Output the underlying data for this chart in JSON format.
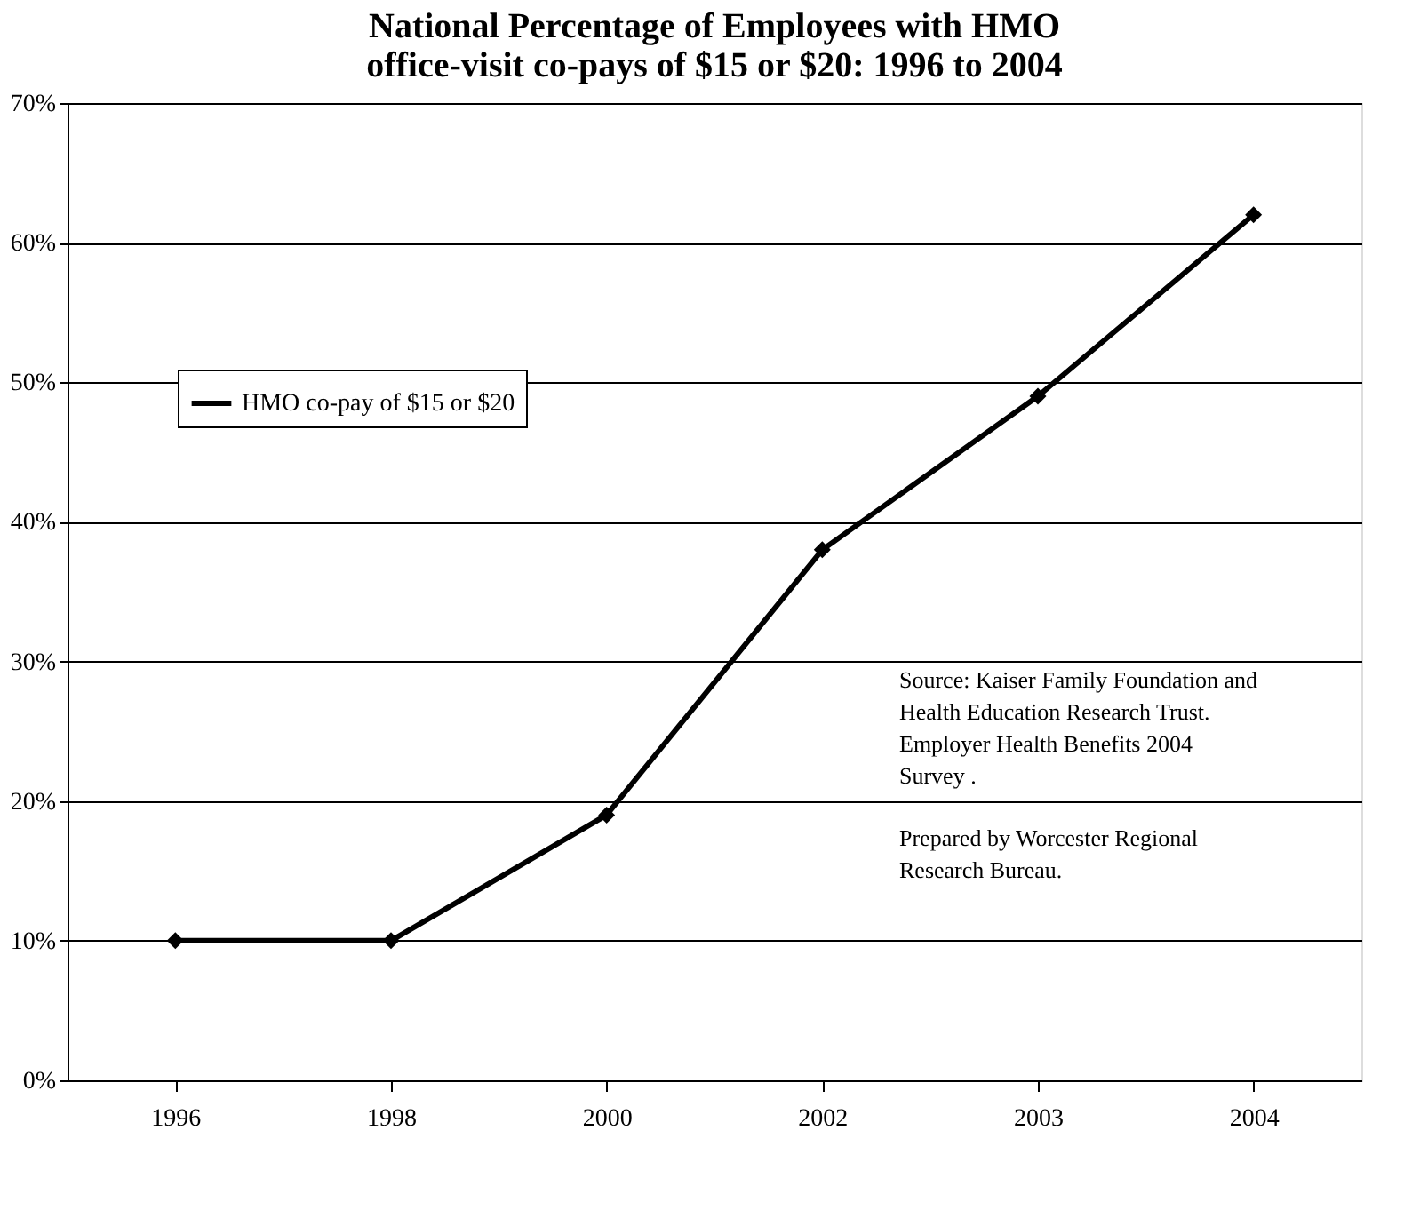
{
  "chart_data": {
    "type": "line",
    "title": "National Percentage of Employees with HMO\noffice-visit co-pays of $15 or $20: 1996 to 2004",
    "categories": [
      "1996",
      "1998",
      "2000",
      "2002",
      "2003",
      "2004"
    ],
    "series": [
      {
        "name": "HMO co-pay of $15 or $20",
        "color": "#000000",
        "values": [
          10,
          10,
          19,
          38,
          49,
          62
        ]
      }
    ],
    "ylim": [
      0,
      70
    ],
    "yticks": [
      {
        "value": 0,
        "label": "0%"
      },
      {
        "value": 10,
        "label": "10%"
      },
      {
        "value": 20,
        "label": "20%"
      },
      {
        "value": 30,
        "label": "30%"
      },
      {
        "value": 40,
        "label": "40%"
      },
      {
        "value": 50,
        "label": "50%"
      },
      {
        "value": 60,
        "label": "60%"
      },
      {
        "value": 70,
        "label": "70%"
      }
    ],
    "grid": "y",
    "legend": "top left",
    "marker": "diamond",
    "line_style": "solid",
    "annotations": [
      "Source: Kaiser Family Foundation and\nHealth Education Research Trust.\nEmployer Health Benefits 2004\nSurvey .",
      "Prepared by Worcester Regional\nResearch Bureau."
    ]
  }
}
